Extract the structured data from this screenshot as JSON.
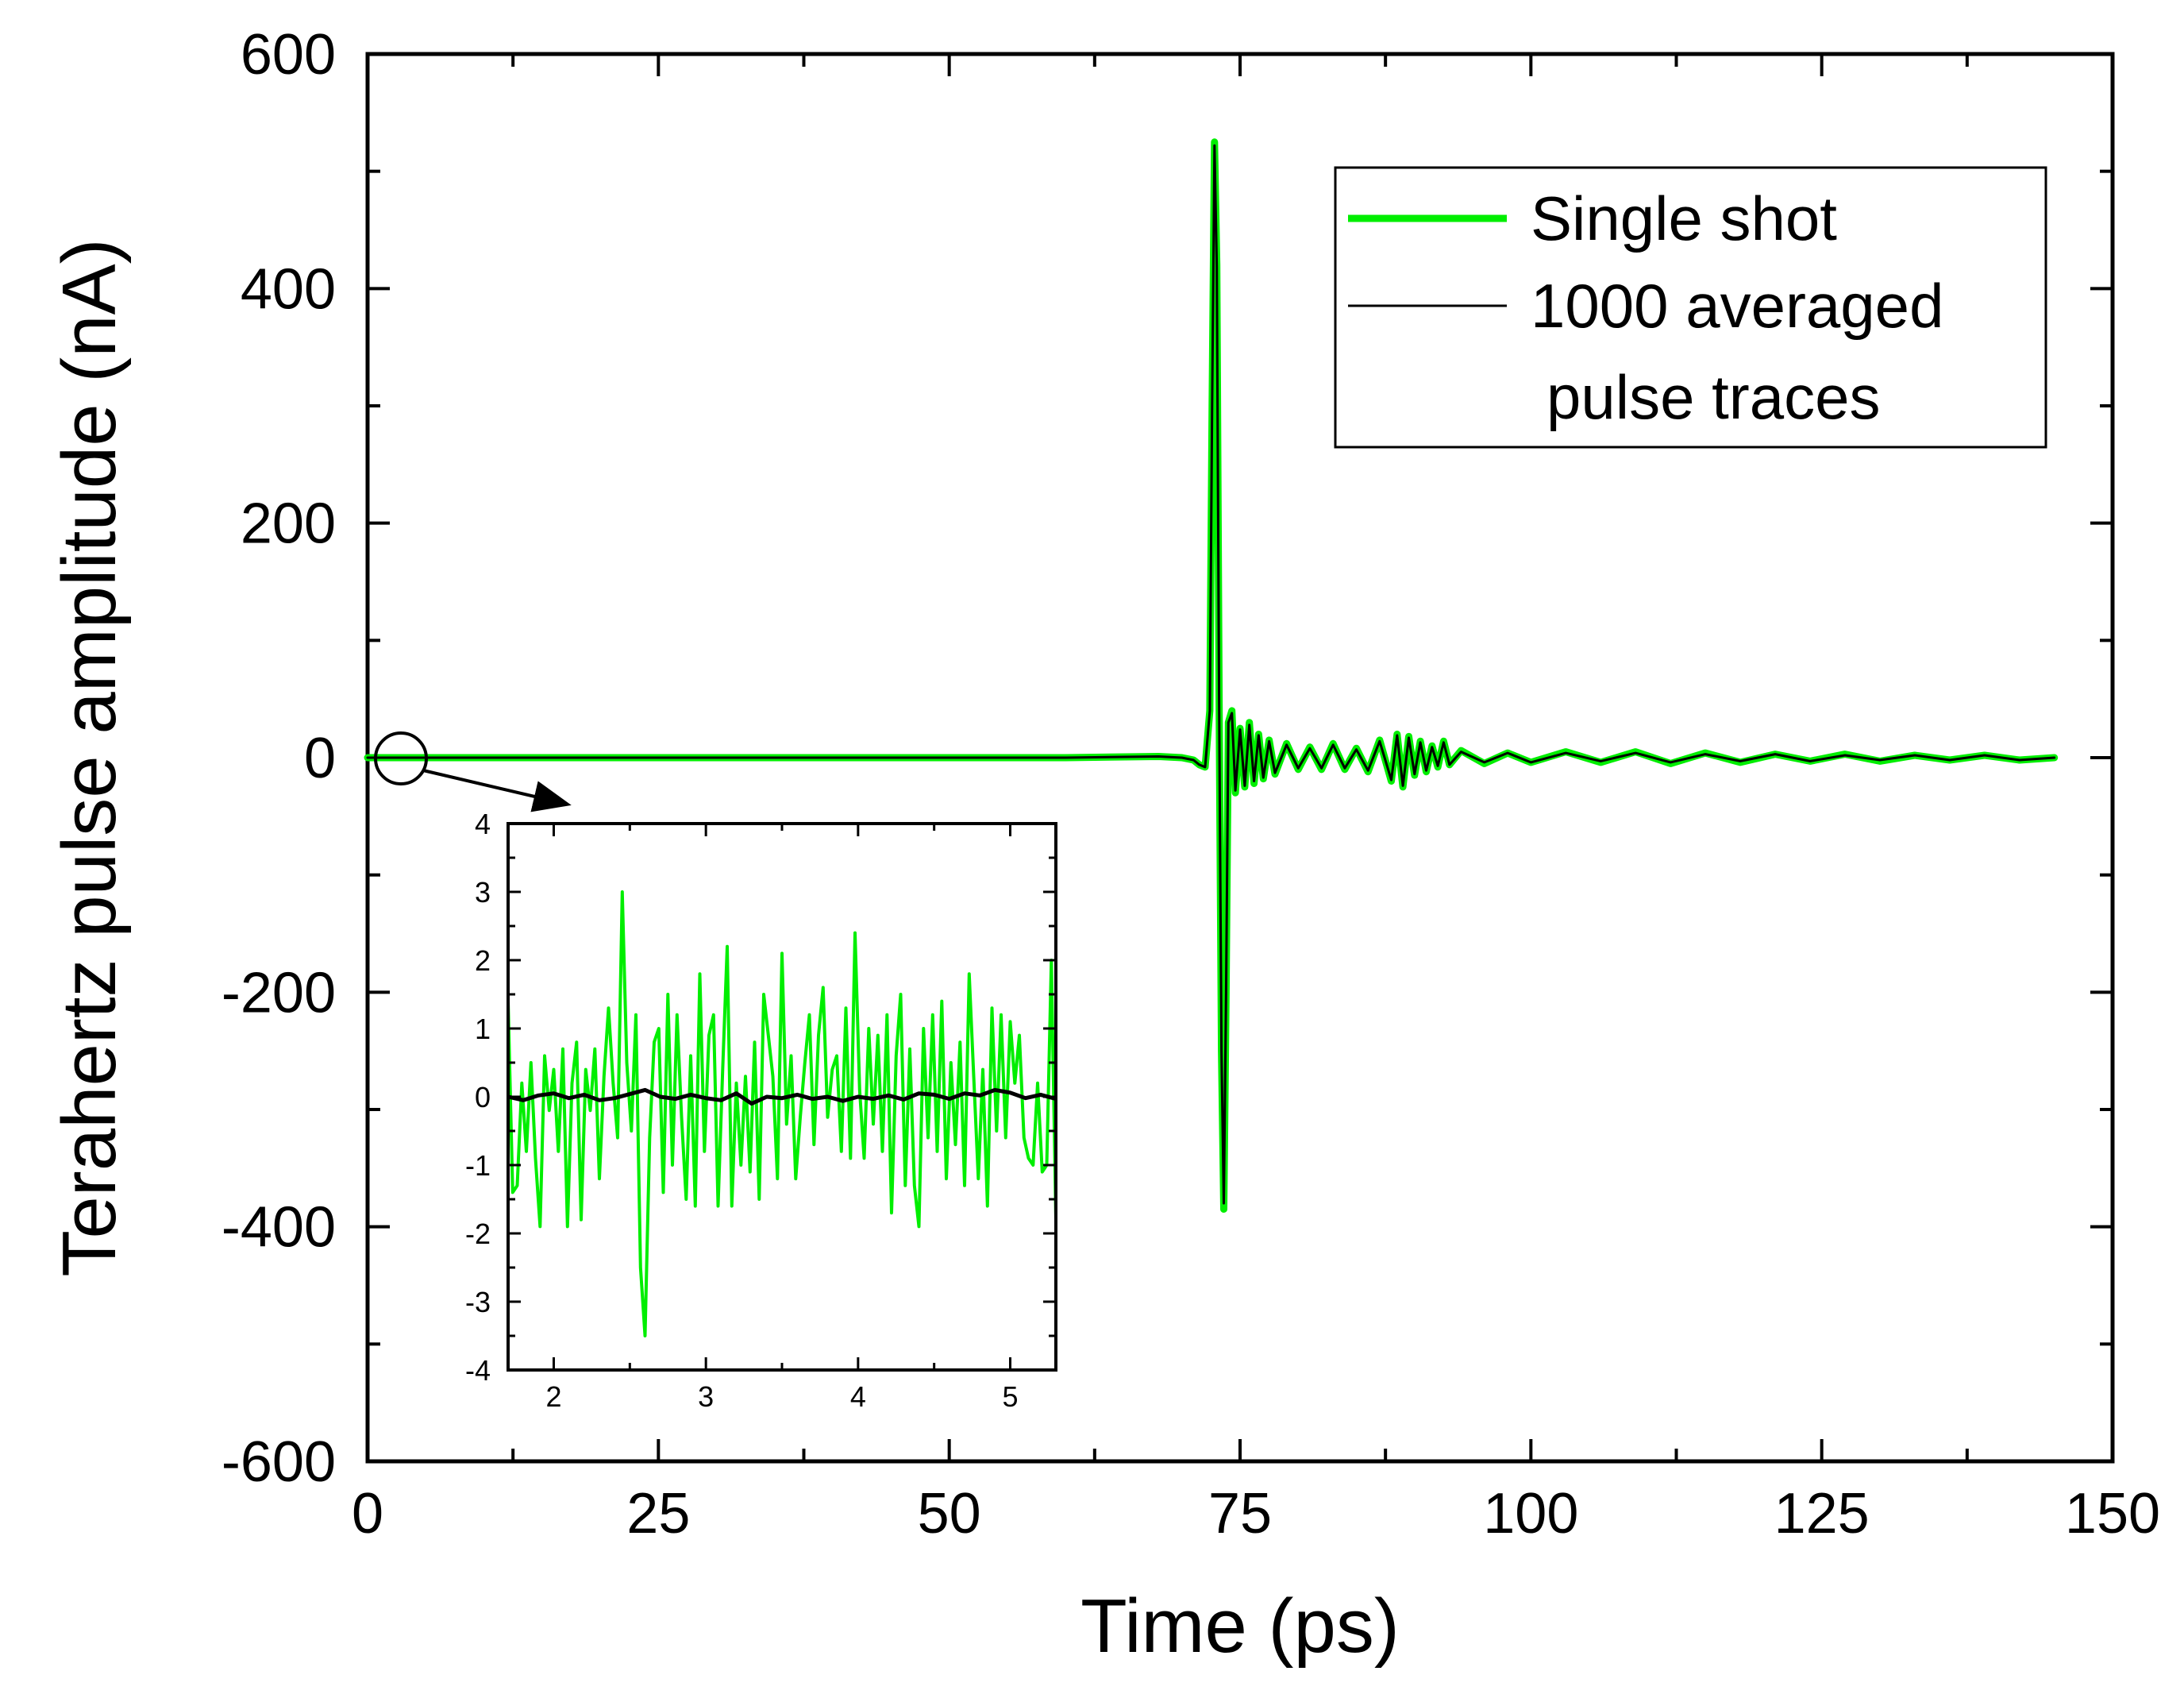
{
  "chart_data": [
    {
      "type": "line",
      "id": "main",
      "xlabel": "Time (ps)",
      "ylabel": "Terahertz pulse amplitude (nA)",
      "xlim": [
        0,
        150
      ],
      "ylim": [
        -600,
        600
      ],
      "xticks": [
        0,
        25,
        50,
        75,
        100,
        125,
        150
      ],
      "yticks": [
        -600,
        -400,
        -200,
        0,
        200,
        400,
        600
      ],
      "xtick_labels": [
        "0",
        "25",
        "50",
        "75",
        "100",
        "125",
        "150"
      ],
      "ytick_labels": [
        "-600",
        "-400",
        "-200",
        "0",
        "200",
        "400",
        "600"
      ],
      "legend_position": "top-right",
      "legend": [
        {
          "name": "Single shot",
          "color": "#00ee00"
        },
        {
          "name": "1000 averaged",
          "name_line2": "pulse traces",
          "color": "#000000"
        }
      ],
      "series": [
        {
          "name": "Single shot",
          "color": "#00ee00",
          "x": [
            0,
            10,
            20,
            30,
            40,
            50,
            60,
            68,
            70,
            71,
            71.5,
            72,
            72.4,
            72.6,
            72.8,
            73.0,
            73.2,
            73.4,
            73.6,
            73.8,
            74.0,
            74.3,
            74.6,
            75.0,
            75.4,
            75.8,
            76.2,
            76.6,
            77.0,
            77.5,
            78.0,
            79,
            80,
            81,
            82,
            83,
            84,
            85,
            86,
            87,
            88,
            88.5,
            89,
            89.5,
            90,
            90.5,
            91,
            91.5,
            92,
            92.5,
            93,
            94,
            96,
            98,
            100,
            103,
            106,
            109,
            112,
            115,
            118,
            121,
            124,
            127,
            130,
            133,
            136,
            139,
            142,
            145
          ],
          "y": [
            0,
            0,
            0,
            0,
            0,
            0,
            0,
            1,
            0,
            -2,
            -6,
            -8,
            40,
            300,
            525,
            420,
            50,
            -250,
            -385,
            -200,
            30,
            40,
            -30,
            25,
            -25,
            30,
            -22,
            20,
            -18,
            15,
            -14,
            12,
            -10,
            9,
            -10,
            12,
            -10,
            8,
            -12,
            15,
            -20,
            20,
            -25,
            18,
            -15,
            14,
            -12,
            10,
            -8,
            14,
            -6,
            6,
            -5,
            4,
            -4,
            5,
            -4,
            5,
            -5,
            4,
            -4,
            3,
            -3,
            3,
            -3,
            2,
            -2,
            2,
            -2,
            0
          ]
        },
        {
          "name": "1000 averaged pulse traces",
          "color": "#000000",
          "x": [
            0,
            10,
            20,
            30,
            40,
            50,
            60,
            68,
            70,
            71,
            71.5,
            72,
            72.4,
            72.6,
            72.8,
            73.0,
            73.2,
            73.4,
            73.6,
            73.8,
            74.0,
            74.3,
            74.6,
            75.0,
            75.4,
            75.8,
            76.2,
            76.6,
            77.0,
            77.5,
            78.0,
            79,
            80,
            81,
            82,
            83,
            84,
            85,
            86,
            87,
            88,
            88.5,
            89,
            89.5,
            90,
            90.5,
            91,
            91.5,
            92,
            92.5,
            93,
            94,
            96,
            98,
            100,
            103,
            106,
            109,
            112,
            115,
            118,
            121,
            124,
            127,
            130,
            133,
            136,
            139,
            142,
            145
          ],
          "y": [
            0,
            0,
            0,
            0,
            0,
            0,
            0,
            1,
            0,
            -2,
            -6,
            -8,
            40,
            300,
            522,
            418,
            50,
            -250,
            -380,
            -200,
            30,
            38,
            -28,
            24,
            -24,
            28,
            -20,
            19,
            -17,
            14,
            -13,
            11,
            -9,
            8,
            -9,
            11,
            -9,
            7,
            -11,
            14,
            -19,
            19,
            -24,
            17,
            -14,
            13,
            -11,
            9,
            -7,
            13,
            -6,
            5,
            -4,
            4,
            -4,
            4,
            -3,
            4,
            -4,
            3,
            -3,
            3,
            -3,
            2,
            -2,
            2,
            -2,
            2,
            -2,
            0
          ]
        }
      ]
    },
    {
      "type": "line",
      "id": "inset",
      "xlim": [
        1.7,
        5.3
      ],
      "ylim": [
        -4,
        4
      ],
      "xticks": [
        2,
        3,
        4,
        5
      ],
      "yticks": [
        -4,
        -3,
        -2,
        -1,
        0,
        1,
        2,
        3,
        4
      ],
      "xtick_labels": [
        "2",
        "3",
        "4",
        "5"
      ],
      "ytick_labels": [
        "-4",
        "-3",
        "-2",
        "-1",
        "0",
        "1",
        "2",
        "3",
        "4"
      ],
      "series": [
        {
          "name": "Single shot",
          "color": "#00ee00",
          "x": [
            1.7,
            1.73,
            1.76,
            1.79,
            1.82,
            1.85,
            1.88,
            1.91,
            1.94,
            1.97,
            2.0,
            2.03,
            2.06,
            2.09,
            2.12,
            2.15,
            2.18,
            2.21,
            2.24,
            2.27,
            2.3,
            2.33,
            2.36,
            2.39,
            2.42,
            2.45,
            2.48,
            2.51,
            2.54,
            2.57,
            2.6,
            2.63,
            2.66,
            2.69,
            2.72,
            2.75,
            2.78,
            2.81,
            2.84,
            2.87,
            2.9,
            2.93,
            2.96,
            2.99,
            3.02,
            3.05,
            3.08,
            3.11,
            3.14,
            3.17,
            3.2,
            3.23,
            3.26,
            3.29,
            3.32,
            3.35,
            3.38,
            3.41,
            3.44,
            3.47,
            3.5,
            3.53,
            3.56,
            3.59,
            3.62,
            3.65,
            3.68,
            3.71,
            3.74,
            3.77,
            3.8,
            3.83,
            3.86,
            3.89,
            3.92,
            3.95,
            3.98,
            4.01,
            4.04,
            4.07,
            4.1,
            4.13,
            4.16,
            4.19,
            4.22,
            4.25,
            4.28,
            4.31,
            4.34,
            4.37,
            4.4,
            4.43,
            4.46,
            4.49,
            4.52,
            4.55,
            4.58,
            4.61,
            4.64,
            4.67,
            4.7,
            4.73,
            4.76,
            4.79,
            4.82,
            4.85,
            4.88,
            4.91,
            4.94,
            4.97,
            5.0,
            5.03,
            5.06,
            5.09,
            5.12,
            5.15,
            5.18,
            5.21,
            5.24,
            5.27,
            5.3
          ],
          "y": [
            1.4,
            -1.4,
            -1.3,
            0.2,
            -0.8,
            0.5,
            -0.9,
            -1.9,
            0.6,
            -0.2,
            0.4,
            -0.8,
            0.7,
            -1.9,
            0.2,
            0.8,
            -1.8,
            0.4,
            -0.2,
            0.7,
            -1.2,
            0.3,
            1.3,
            0.2,
            -0.6,
            3.0,
            0.5,
            -0.5,
            1.2,
            -2.5,
            -3.5,
            -0.6,
            0.8,
            1.0,
            -1.4,
            1.5,
            -1.0,
            1.2,
            -0.3,
            -1.5,
            0.6,
            -1.6,
            1.8,
            -0.8,
            0.9,
            1.2,
            -1.6,
            0.4,
            2.2,
            -1.6,
            0.2,
            -1.0,
            0.3,
            -1.1,
            0.8,
            -1.5,
            1.5,
            0.9,
            0.3,
            -1.2,
            2.1,
            -0.4,
            0.6,
            -1.2,
            -0.3,
            0.5,
            1.2,
            -0.7,
            0.9,
            1.6,
            -0.3,
            0.4,
            0.6,
            -0.8,
            1.3,
            -0.9,
            2.4,
            0.1,
            -0.9,
            1.0,
            -0.4,
            0.9,
            -0.8,
            1.2,
            -1.7,
            0.6,
            1.5,
            -1.3,
            0.7,
            -1.3,
            -1.9,
            1.0,
            -0.6,
            1.2,
            -0.8,
            1.4,
            -1.2,
            0.5,
            -0.7,
            0.8,
            -1.3,
            1.8,
            0.3,
            -1.2,
            0.4,
            -1.6,
            1.3,
            -0.5,
            1.2,
            -0.6,
            1.1,
            0.2,
            0.9,
            -0.6,
            -0.9,
            -1.0,
            0.2,
            -1.1,
            -1.0,
            2.0,
            -1.8
          ]
        },
        {
          "name": "1000 averaged pulse traces",
          "color": "#000000",
          "x": [
            1.7,
            1.8,
            1.9,
            2.0,
            2.1,
            2.2,
            2.3,
            2.4,
            2.5,
            2.6,
            2.7,
            2.8,
            2.9,
            3.0,
            3.1,
            3.2,
            3.3,
            3.4,
            3.5,
            3.6,
            3.7,
            3.8,
            3.9,
            4.0,
            4.1,
            4.2,
            4.3,
            4.4,
            4.5,
            4.6,
            4.7,
            4.8,
            4.9,
            5.0,
            5.1,
            5.2,
            5.3
          ],
          "y": [
            0,
            -0.05,
            0.02,
            0.05,
            -0.02,
            0.03,
            -0.05,
            -0.02,
            0.04,
            0.1,
            0.0,
            -0.03,
            0.03,
            -0.02,
            -0.05,
            0.05,
            -0.1,
            0.0,
            -0.02,
            0.03,
            -0.03,
            0.0,
            -0.06,
            0.0,
            -0.03,
            0.02,
            -0.04,
            0.05,
            0.03,
            -0.03,
            0.05,
            0.02,
            0.1,
            0.06,
            -0.02,
            0.03,
            -0.03
          ]
        }
      ]
    }
  ]
}
